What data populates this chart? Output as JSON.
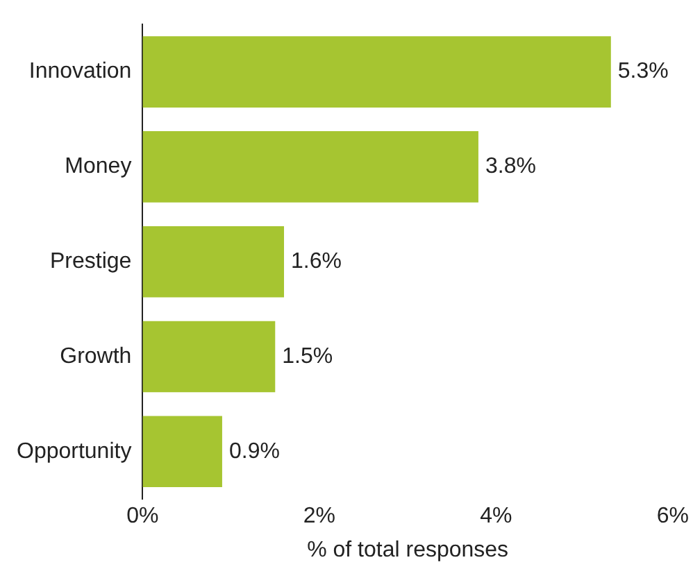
{
  "chart_data": {
    "type": "bar",
    "orientation": "horizontal",
    "xlabel": "% of total responses",
    "categories": [
      "Innovation",
      "Money",
      "Prestige",
      "Growth",
      "Opportunity"
    ],
    "values": [
      5.3,
      3.8,
      1.6,
      1.5,
      0.9
    ],
    "value_labels": [
      "5.3%",
      "3.8%",
      "1.6%",
      "1.5%",
      "0.9%"
    ],
    "color": "#a6c531",
    "xlim": [
      0,
      6
    ],
    "xticks": [
      {
        "value": 0,
        "label": "0%"
      },
      {
        "value": 2,
        "label": "2%"
      },
      {
        "value": 4,
        "label": "4%"
      },
      {
        "value": 6,
        "label": "6%"
      }
    ],
    "grid": false,
    "legend": false
  }
}
